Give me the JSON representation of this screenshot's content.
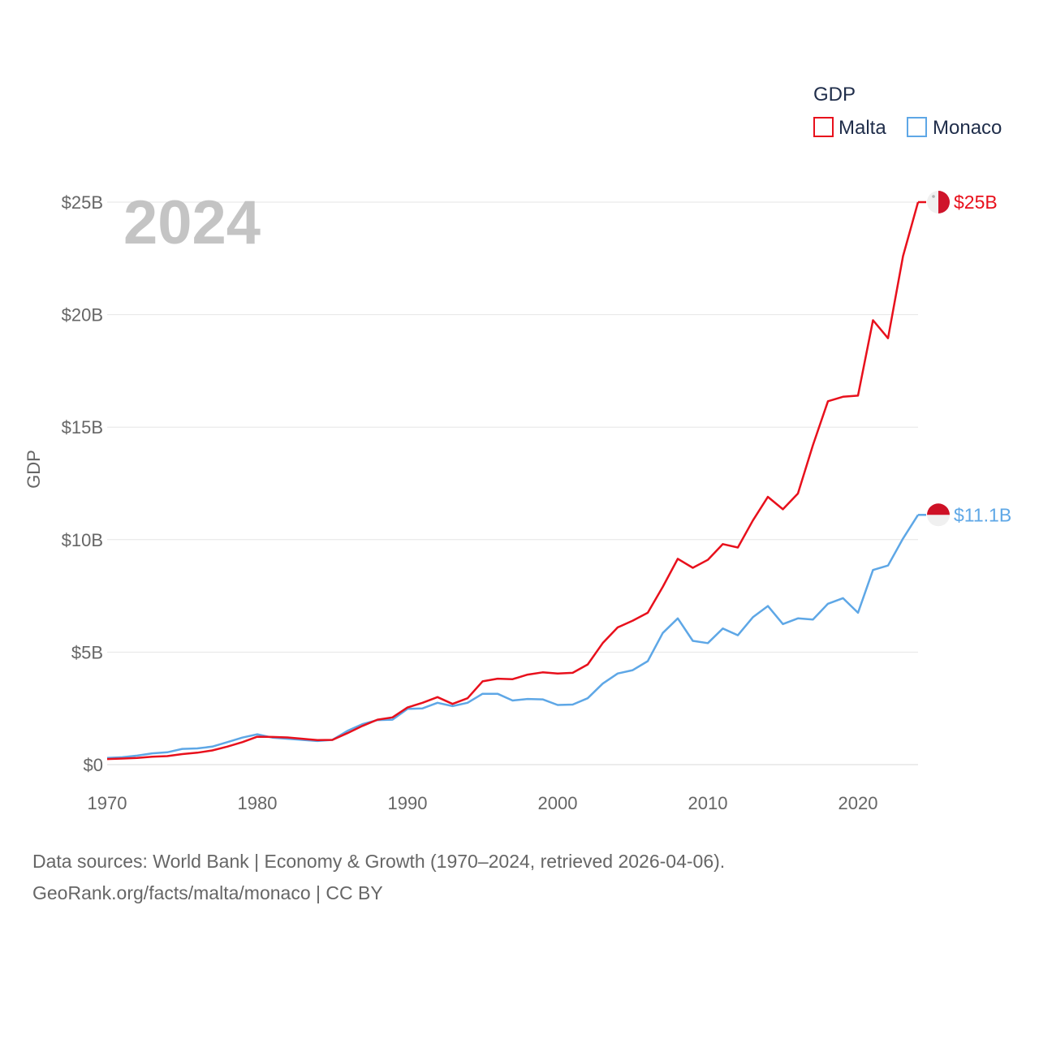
{
  "chart_data": {
    "type": "line",
    "title": "",
    "year_label": "2024",
    "ylabel": "GDP",
    "xlabel": "",
    "xlim": [
      1970,
      2024
    ],
    "ylim": [
      0,
      25
    ],
    "y_ticks": [
      0,
      5,
      10,
      15,
      20,
      25
    ],
    "y_tick_labels": [
      "$0",
      "$5B",
      "$10B",
      "$15B",
      "$20B",
      "$25B"
    ],
    "x_ticks": [
      1970,
      1980,
      1990,
      2000,
      2010,
      2020
    ],
    "x_tick_labels": [
      "1970",
      "1980",
      "1990",
      "2000",
      "2010",
      "2020"
    ],
    "legend": {
      "title": "GDP",
      "position": "top-right"
    },
    "x": [
      1970,
      1971,
      1972,
      1973,
      1974,
      1975,
      1976,
      1977,
      1978,
      1979,
      1980,
      1981,
      1982,
      1983,
      1984,
      1985,
      1986,
      1987,
      1988,
      1989,
      1990,
      1991,
      1992,
      1993,
      1994,
      1995,
      1996,
      1997,
      1998,
      1999,
      2000,
      2001,
      2002,
      2003,
      2004,
      2005,
      2006,
      2007,
      2008,
      2009,
      2010,
      2011,
      2012,
      2013,
      2014,
      2015,
      2016,
      2017,
      2018,
      2019,
      2020,
      2021,
      2022,
      2023,
      2024
    ],
    "series": [
      {
        "name": "Malta",
        "color": "#e8101c",
        "end_label": "$25B",
        "flag": "malta-flag",
        "values": [
          0.25,
          0.27,
          0.3,
          0.35,
          0.38,
          0.47,
          0.53,
          0.63,
          0.8,
          1.0,
          1.24,
          1.23,
          1.21,
          1.15,
          1.09,
          1.1,
          1.4,
          1.72,
          2.0,
          2.1,
          2.54,
          2.75,
          3.0,
          2.7,
          2.95,
          3.7,
          3.82,
          3.8,
          4.0,
          4.1,
          4.05,
          4.08,
          4.45,
          5.4,
          6.1,
          6.4,
          6.75,
          7.9,
          9.15,
          8.75,
          9.1,
          9.8,
          9.65,
          10.85,
          11.9,
          11.35,
          12.05,
          14.2,
          16.15,
          16.35,
          16.4,
          19.75,
          18.95,
          22.6,
          25.0
        ]
      },
      {
        "name": "Monaco",
        "color": "#5ea7e6",
        "end_label": "$11.1B",
        "flag": "monaco-flag",
        "values": [
          0.3,
          0.33,
          0.4,
          0.5,
          0.55,
          0.7,
          0.72,
          0.8,
          1.0,
          1.2,
          1.35,
          1.2,
          1.15,
          1.1,
          1.05,
          1.1,
          1.5,
          1.8,
          1.98,
          2.0,
          2.48,
          2.5,
          2.75,
          2.6,
          2.75,
          3.15,
          3.15,
          2.85,
          2.92,
          2.9,
          2.65,
          2.67,
          2.95,
          3.6,
          4.05,
          4.2,
          4.6,
          5.85,
          6.5,
          5.5,
          5.4,
          6.05,
          5.75,
          6.55,
          7.05,
          6.25,
          6.5,
          6.45,
          7.15,
          7.4,
          6.75,
          8.65,
          8.85,
          10.05,
          11.1
        ]
      }
    ]
  },
  "source": {
    "line1": "Data sources: World Bank | Economy & Growth (1970–2024, retrieved 2026-04-06).",
    "line2": "GeoRank.org/facts/malta/monaco | CC BY"
  }
}
